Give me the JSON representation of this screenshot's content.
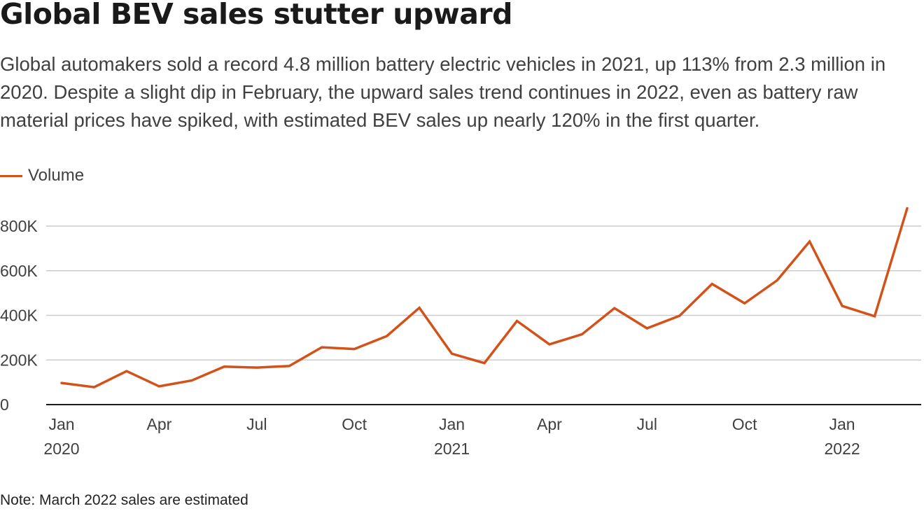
{
  "title": "Global BEV sales stutter upward",
  "subtitle": "Global automakers sold a record 4.8 million battery electric vehicles in 2021, up 113% from 2.3 million in 2020. Despite a slight dip in February, the upward sales trend continues in 2022, even as battery raw material prices have spiked, with estimated BEV sales up nearly 120% in the first quarter.",
  "note": "Note: March 2022 sales are estimated",
  "colors": {
    "series": "#d35219",
    "grid": "#cccccc",
    "axis": "#1a1a1a",
    "text": "#404040"
  },
  "chart_data": {
    "type": "line",
    "legend_position": "top-left",
    "grid": true,
    "ylim": [
      0,
      880000
    ],
    "yticks": [
      0,
      200000,
      400000,
      600000,
      800000
    ],
    "ytick_labels": [
      "0",
      "200K",
      "400K",
      "600K",
      "800K"
    ],
    "xlim": [
      "2020-01",
      "2022-03"
    ],
    "xticks": [
      {
        "x": "2020-01",
        "label": "Jan",
        "sublabel": "2020"
      },
      {
        "x": "2020-04",
        "label": "Apr",
        "sublabel": ""
      },
      {
        "x": "2020-07",
        "label": "Jul",
        "sublabel": ""
      },
      {
        "x": "2020-10",
        "label": "Oct",
        "sublabel": ""
      },
      {
        "x": "2021-01",
        "label": "Jan",
        "sublabel": "2021"
      },
      {
        "x": "2021-04",
        "label": "Apr",
        "sublabel": ""
      },
      {
        "x": "2021-07",
        "label": "Jul",
        "sublabel": ""
      },
      {
        "x": "2021-10",
        "label": "Oct",
        "sublabel": ""
      },
      {
        "x": "2022-01",
        "label": "Jan",
        "sublabel": "2022"
      }
    ],
    "series": [
      {
        "name": "Volume",
        "color": "#d35219",
        "x": [
          "2020-01",
          "2020-02",
          "2020-03",
          "2020-04",
          "2020-05",
          "2020-06",
          "2020-07",
          "2020-08",
          "2020-09",
          "2020-10",
          "2020-11",
          "2020-12",
          "2021-01",
          "2021-02",
          "2021-03",
          "2021-04",
          "2021-05",
          "2021-06",
          "2021-07",
          "2021-08",
          "2021-09",
          "2021-10",
          "2021-11",
          "2021-12",
          "2022-01",
          "2022-02",
          "2022-03"
        ],
        "values": [
          97000,
          78000,
          150000,
          82000,
          108000,
          170000,
          166000,
          173000,
          257000,
          249000,
          307000,
          434000,
          228000,
          186000,
          375000,
          270000,
          315000,
          432000,
          342000,
          398000,
          541000,
          454000,
          557000,
          731000,
          442000,
          396000,
          880000
        ]
      }
    ]
  }
}
